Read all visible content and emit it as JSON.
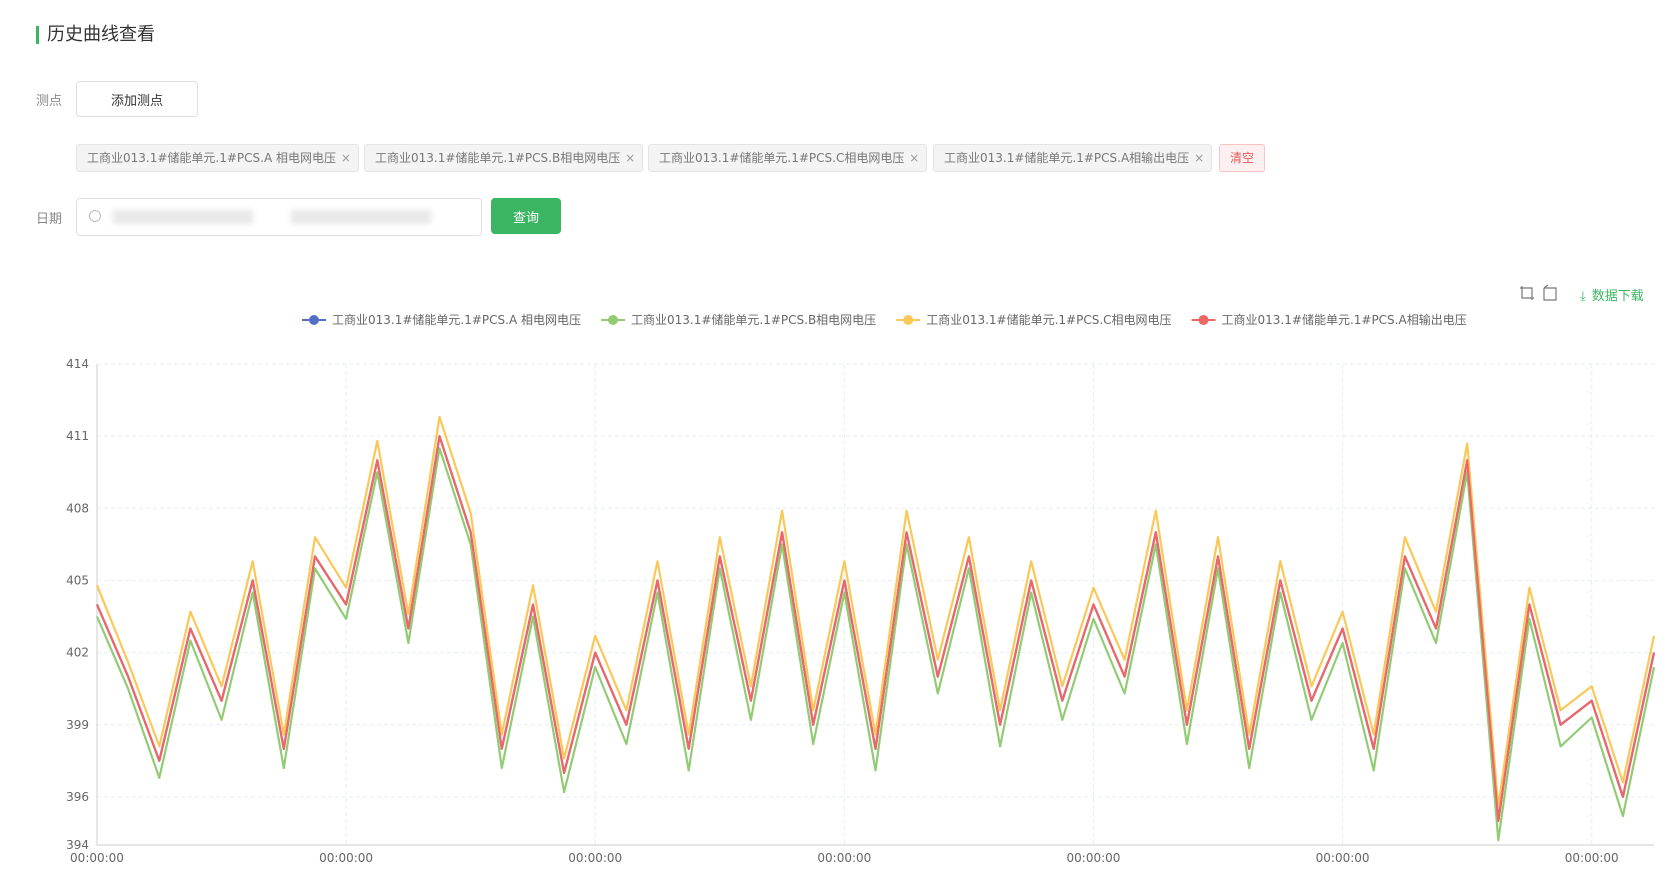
{
  "header": {
    "title": "历史曲线查看"
  },
  "form": {
    "point_label": "测点",
    "add_point_button": "添加测点",
    "date_label": "日期",
    "query_button": "查询",
    "tags": [
      "工商业013.1#储能单元.1#PCS.A 相电网电压",
      "工商业013.1#储能单元.1#PCS.B相电网电压",
      "工商业013.1#储能单元.1#PCS.C相电网电压",
      "工商业013.1#储能单元.1#PCS.A相输出电压"
    ],
    "clear_button": "清空"
  },
  "toolbar": {
    "download": "数据下载"
  },
  "chart_data": {
    "type": "line",
    "grid": true,
    "legend": "top",
    "categories": [
      "00:00:00",
      null,
      null,
      null,
      null,
      null,
      null,
      null,
      "00:00:00",
      null,
      null,
      null,
      null,
      null,
      null,
      null,
      "00:00:00",
      null,
      null,
      null,
      null,
      null,
      null,
      null,
      "00:00:00",
      null,
      null,
      null,
      null,
      null,
      null,
      null,
      "00:00:00",
      null,
      null,
      null,
      null,
      null,
      null,
      null,
      "00:00:00",
      null,
      null,
      null,
      null,
      null,
      null,
      null,
      "00:00:00",
      null,
      null
    ],
    "ylim": [
      394,
      414
    ],
    "yticks": [
      394,
      396,
      399,
      402,
      405,
      408,
      411,
      414
    ],
    "series": [
      {
        "name": "工商业013.1#储能单元.1#PCS.A 相电网电压",
        "color": "#5470c6",
        "values": [
          404,
          401,
          397.5,
          403,
          400,
          405,
          398,
          406,
          404,
          410,
          403,
          411,
          407,
          398,
          404,
          397,
          402,
          399,
          405,
          398,
          406,
          400,
          407,
          399,
          405,
          398,
          407,
          401,
          406,
          399,
          405,
          400,
          404,
          401,
          407,
          399,
          406,
          398,
          405,
          400,
          403,
          398,
          406,
          403,
          410,
          395,
          404,
          399,
          400,
          396,
          402
        ]
      },
      {
        "name": "工商业013.1#储能单元.1#PCS.B相电网电压",
        "color": "#91cc75",
        "values": [
          403.5,
          400.5,
          396.8,
          402.5,
          399.2,
          404.5,
          397.2,
          405.5,
          403.4,
          409.5,
          402.4,
          410.5,
          406.5,
          397.2,
          403.5,
          396.2,
          401.4,
          398.2,
          404.5,
          397.1,
          405.5,
          399.2,
          406.5,
          398.2,
          404.5,
          397.1,
          406.5,
          400.3,
          405.5,
          398.1,
          404.5,
          399.2,
          403.4,
          400.3,
          406.5,
          398.2,
          405.5,
          397.2,
          404.5,
          399.2,
          402.4,
          397.1,
          405.5,
          402.4,
          409.5,
          394.2,
          403.4,
          398.1,
          399.3,
          395.2,
          401.4
        ]
      },
      {
        "name": "工商业013.1#储能单元.1#PCS.C相电网电压",
        "color": "#fac858",
        "values": [
          404.8,
          401.6,
          398.1,
          403.7,
          400.6,
          405.8,
          398.6,
          406.8,
          404.7,
          410.8,
          403.6,
          411.8,
          407.8,
          398.6,
          404.8,
          397.6,
          402.7,
          399.6,
          405.8,
          398.6,
          406.8,
          400.6,
          407.9,
          399.6,
          405.8,
          398.6,
          407.9,
          401.7,
          406.8,
          399.6,
          405.8,
          400.6,
          404.7,
          401.7,
          407.9,
          399.6,
          406.8,
          398.6,
          405.8,
          400.6,
          403.7,
          398.6,
          406.8,
          403.7,
          410.7,
          395.6,
          404.7,
          399.6,
          400.6,
          396.6,
          402.7
        ]
      },
      {
        "name": "工商业013.1#储能单元.1#PCS.A相输出电压",
        "color": "#ee6666",
        "values": [
          404,
          401,
          397.5,
          403,
          400,
          405,
          398,
          406,
          404,
          410,
          403,
          411,
          407,
          398,
          404,
          397,
          402,
          399,
          405,
          398,
          406,
          400,
          407,
          399,
          405,
          398,
          407,
          401,
          406,
          399,
          405,
          400,
          404,
          401,
          407,
          399,
          406,
          398,
          405,
          400,
          403,
          398,
          406,
          403,
          410,
          395,
          404,
          399,
          400,
          396,
          402
        ]
      }
    ]
  }
}
